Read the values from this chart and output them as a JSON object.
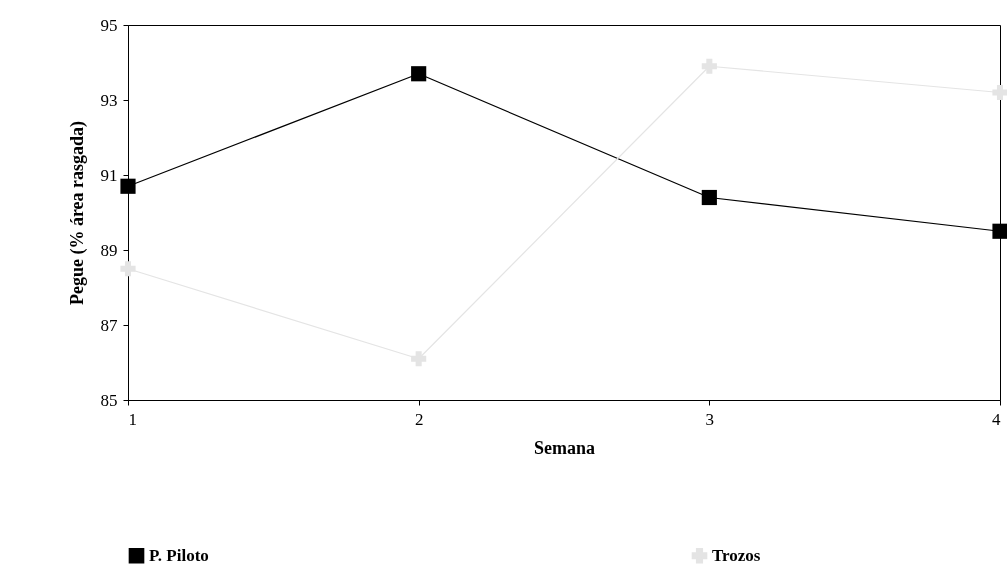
{
  "chart_data": {
    "type": "line",
    "xlabel": "Semana",
    "ylabel": "Pegue (% área rasgada)",
    "x": [
      1,
      2,
      3,
      4
    ],
    "series": [
      {
        "name": "P. Piloto",
        "color": "#000000",
        "marker": "square",
        "values": [
          90.7,
          93.7,
          90.4,
          89.5
        ]
      },
      {
        "name": "Trozos",
        "color": "#e4e4e4",
        "marker": "cross",
        "values": [
          88.5,
          86.1,
          93.9,
          93.2
        ]
      }
    ],
    "xlim": [
      1,
      4
    ],
    "xticks": [
      1,
      2,
      3,
      4
    ],
    "ylim": [
      85,
      95
    ],
    "yticks": [
      85,
      87,
      89,
      91,
      93,
      95
    ],
    "grid": false,
    "legend": "bottom"
  }
}
